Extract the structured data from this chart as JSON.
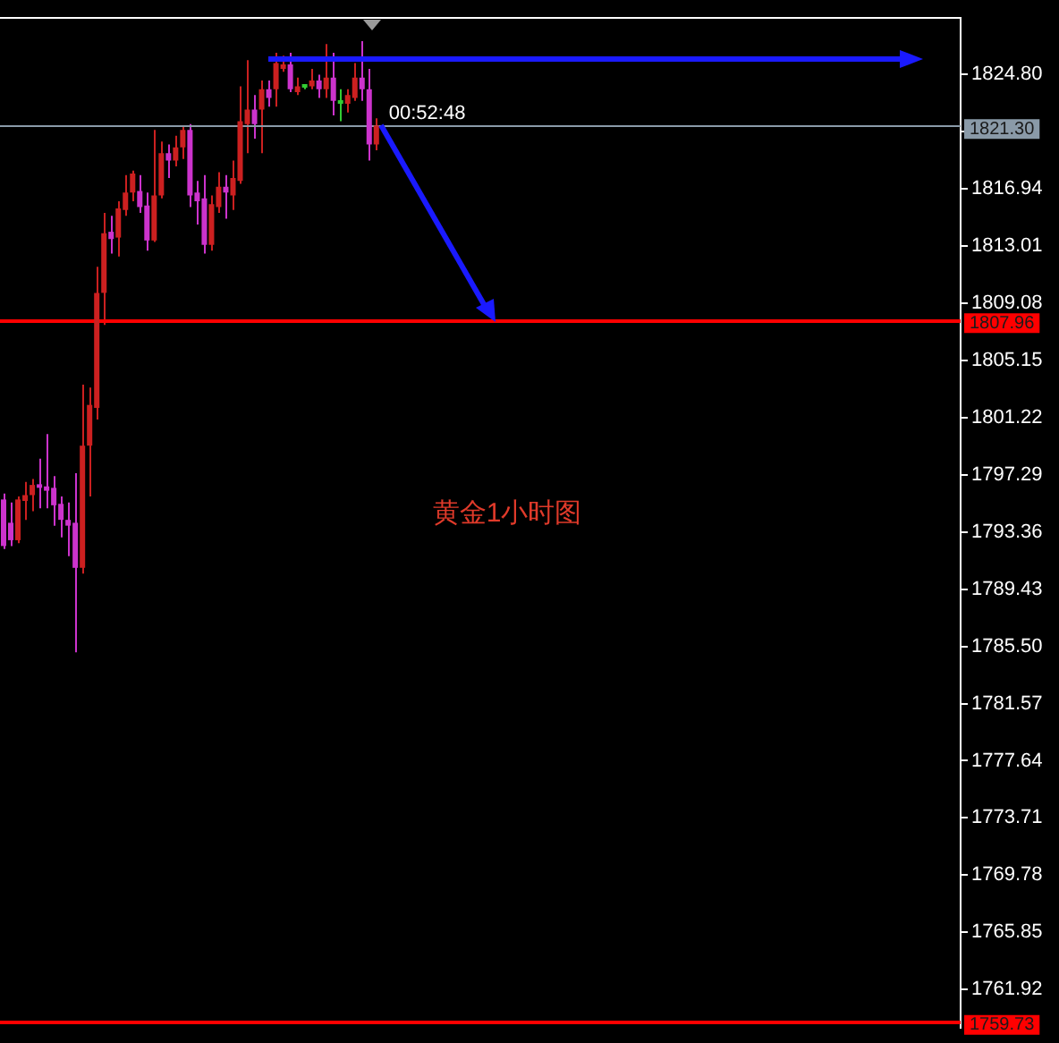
{
  "chart_data": {
    "type": "candlestick",
    "categories": [
      null,
      null,
      null,
      null,
      null,
      null,
      null,
      null,
      null,
      null,
      null,
      null,
      null,
      null,
      null,
      null,
      null,
      null,
      null,
      null,
      null,
      null,
      null,
      null,
      null,
      null,
      null,
      null,
      null,
      null,
      null,
      null,
      null,
      null,
      null,
      null,
      null,
      null,
      null,
      null,
      null,
      null,
      null,
      null,
      null,
      null,
      null,
      null,
      null,
      null,
      null,
      null,
      null,
      null,
      null,
      null,
      null,
      null,
      null,
      null,
      null,
      null,
      null,
      null,
      null,
      null,
      null,
      null,
      null,
      null,
      null,
      null,
      null,
      null,
      null,
      null,
      null,
      null,
      null,
      null,
      null,
      null,
      null,
      null,
      null,
      null,
      null,
      null,
      null,
      null,
      null,
      null,
      null,
      null,
      null,
      null,
      null,
      null,
      null,
      null,
      null,
      null,
      null,
      null,
      null,
      null,
      null,
      null,
      null,
      null,
      null,
      null,
      null,
      null,
      null,
      null,
      null,
      null,
      null,
      null,
      null,
      null,
      null,
      null,
      null,
      null,
      null,
      null,
      null,
      null,
      null,
      null,
      null,
      null
    ],
    "ohlc": [
      [
        1795.6,
        1796.0,
        1792.2,
        1792.4
      ],
      [
        1794.0,
        1795.4,
        1792.4,
        1792.8
      ],
      [
        1792.8,
        1795.8,
        1792.6,
        1795.6
      ],
      [
        1795.5,
        1796.8,
        1794.2,
        1795.9
      ],
      [
        1795.9,
        1797.0,
        1794.8,
        1796.6
      ],
      [
        1796.6,
        1798.4,
        1795.0,
        1796.4
      ],
      [
        1796.5,
        1800.1,
        1795.0,
        1796.2
      ],
      [
        1796.4,
        1797.2,
        1793.8,
        1795.2
      ],
      [
        1795.3,
        1795.8,
        1793.0,
        1794.2
      ],
      [
        1794.2,
        1795.4,
        1791.7,
        1793.8
      ],
      [
        1794.0,
        1797.4,
        1785.1,
        1790.9
      ],
      [
        1790.9,
        1803.5,
        1790.5,
        1799.3
      ],
      [
        1799.3,
        1803.3,
        1795.8,
        1802.1
      ],
      [
        1801.9,
        1811.6,
        1801.1,
        1809.8
      ],
      [
        1809.8,
        1815.3,
        1807.6,
        1813.9
      ],
      [
        1814.0,
        1815.1,
        1812.5,
        1813.5
      ],
      [
        1813.6,
        1816.1,
        1812.3,
        1815.6
      ],
      [
        1815.5,
        1817.9,
        1815.1,
        1816.7
      ],
      [
        1816.7,
        1818.2,
        1816.1,
        1818.0
      ],
      [
        1816.8,
        1817.9,
        1815.3,
        1815.7
      ],
      [
        1815.8,
        1816.7,
        1812.7,
        1813.4
      ],
      [
        1813.4,
        1821.0,
        1813.3,
        1816.5
      ],
      [
        1816.5,
        1820.2,
        1816.3,
        1819.4
      ],
      [
        1819.4,
        1820.0,
        1817.7,
        1818.9
      ],
      [
        1818.9,
        1820.6,
        1818.5,
        1819.8
      ],
      [
        1819.8,
        1821.2,
        1819.0,
        1821.0
      ],
      [
        1821.0,
        1821.4,
        1815.7,
        1816.5
      ],
      [
        1816.7,
        1817.5,
        1814.5,
        1816.1
      ],
      [
        1816.3,
        1817.9,
        1812.5,
        1813.1
      ],
      [
        1813.1,
        1816.5,
        1812.7,
        1815.9
      ],
      [
        1815.7,
        1818.1,
        1815.3,
        1817.1
      ],
      [
        1817.1,
        1817.9,
        1814.9,
        1816.7
      ],
      [
        1816.5,
        1818.9,
        1815.5,
        1817.7
      ],
      [
        1817.5,
        1824.0,
        1817.3,
        1821.6
      ],
      [
        1821.4,
        1825.8,
        1819.4,
        1822.4
      ],
      [
        1822.4,
        1823.4,
        1820.4,
        1821.4
      ],
      [
        1822.4,
        1824.4,
        1819.4,
        1823.8
      ],
      [
        1823.8,
        1824.4,
        1822.6,
        1823.2
      ],
      [
        1823.8,
        1826.3,
        1822.6,
        1825.6
      ],
      [
        1825.2,
        1826.1,
        1825.0,
        1825.5
      ],
      [
        1825.5,
        1826.3,
        1823.6,
        1823.8
      ],
      [
        1823.6,
        1824.6,
        1823.4,
        1824.0
      ],
      [
        1823.9,
        1824.0,
        1823.8,
        1823.9
      ],
      [
        1824.0,
        1825.2,
        1823.8,
        1824.4
      ],
      [
        1824.4,
        1824.8,
        1823.2,
        1823.8
      ],
      [
        1823.8,
        1826.9,
        1823.2,
        1824.6
      ],
      [
        1824.6,
        1826.3,
        1822.0,
        1823.0
      ],
      [
        1822.8,
        1823.8,
        1821.6,
        1822.8
      ],
      [
        1822.8,
        1823.8,
        1822.2,
        1823.4
      ],
      [
        1823.2,
        1825.6,
        1823.0,
        1824.6
      ],
      [
        1824.6,
        1827.1,
        1823.0,
        1823.8
      ],
      [
        1823.8,
        1825.2,
        1818.9,
        1820.0
      ],
      [
        1820.0,
        1821.8,
        1819.6,
        1821.3
      ],
      null,
      null,
      null,
      null,
      null,
      null,
      null,
      null,
      null,
      null,
      null,
      null,
      null,
      null,
      null,
      null,
      null,
      null,
      null,
      null,
      null,
      null,
      null,
      null,
      null,
      null,
      null,
      null,
      null,
      null,
      null,
      null,
      null,
      null,
      null,
      null,
      null,
      null,
      null,
      null,
      null,
      null,
      null,
      null,
      null,
      null,
      null,
      null,
      null,
      null,
      null,
      null,
      null,
      null,
      null,
      null,
      null,
      null,
      null,
      null,
      null,
      null,
      null,
      null,
      null,
      null,
      null,
      null,
      null,
      null,
      null,
      null,
      null,
      null,
      null,
      null,
      null,
      null,
      null,
      null,
      null
    ],
    "colors": [
      "#cc33cc",
      "#cc33cc",
      "#cc2020",
      "#cc2020",
      "#cc2020",
      "#cc33cc",
      "#cc33cc",
      "#cc33cc",
      "#cc33cc",
      "#cc33cc",
      "#cc33cc",
      "#cc2020",
      "#cc2020",
      "#cc2020",
      "#cc2020",
      "#cc33cc",
      "#cc2020",
      "#cc2020",
      "#cc2020",
      "#cc33cc",
      "#cc33cc",
      "#cc2020",
      "#cc2020",
      "#cc33cc",
      "#cc2020",
      "#cc2020",
      "#cc33cc",
      "#cc33cc",
      "#cc33cc",
      "#cc2020",
      "#cc2020",
      "#cc33cc",
      "#cc2020",
      "#cc2020",
      "#cc2020",
      "#cc33cc",
      "#cc2020",
      "#cc33cc",
      "#cc2020",
      "#cc2020",
      "#cc33cc",
      "#cc2020",
      "#33cc33",
      "#cc2020",
      "#cc33cc",
      "#cc2020",
      "#cc33cc",
      "#33cc33",
      "#cc2020",
      "#cc2020",
      "#cc33cc",
      "#cc33cc",
      "#cc2020",
      null,
      null,
      null,
      null,
      null,
      null,
      null,
      null,
      null,
      null,
      null,
      null,
      null,
      null,
      null,
      null,
      null,
      null,
      null,
      null,
      null,
      null,
      null,
      null,
      null,
      null,
      null,
      null,
      null,
      null,
      null,
      null,
      null,
      null,
      null,
      null,
      null,
      null,
      null,
      null,
      null,
      null,
      null,
      null,
      null,
      null,
      null,
      null,
      null,
      null,
      null,
      null,
      null,
      null,
      null,
      null,
      null,
      null,
      null,
      null,
      null,
      null,
      null,
      null,
      null,
      null,
      null,
      null,
      null,
      null,
      null,
      null,
      null,
      null,
      null,
      null,
      null,
      null,
      null,
      null,
      null
    ],
    "ylim": [
      1759.3,
      1828.7
    ],
    "yticks": [
      {
        "value": 1824.8,
        "label": "1824.80"
      },
      {
        "value": 1820.87,
        "label": null
      },
      {
        "value": 1816.94,
        "label": "1816.94"
      },
      {
        "value": 1813.01,
        "label": "1813.01"
      },
      {
        "value": 1809.08,
        "label": "1809.08"
      },
      {
        "value": 1805.15,
        "label": "1805.15"
      },
      {
        "value": 1801.22,
        "label": "1801.22"
      },
      {
        "value": 1797.29,
        "label": "1797.29"
      },
      {
        "value": 1793.36,
        "label": "1793.36"
      },
      {
        "value": 1789.43,
        "label": "1789.43"
      },
      {
        "value": 1785.5,
        "label": "1785.50"
      },
      {
        "value": 1781.57,
        "label": "1781.57"
      },
      {
        "value": 1777.64,
        "label": "1777.64"
      },
      {
        "value": 1773.71,
        "label": "1773.71"
      },
      {
        "value": 1769.78,
        "label": "1769.78"
      },
      {
        "value": 1765.85,
        "label": "1765.85"
      },
      {
        "value": 1761.92,
        "label": "1761.92"
      }
    ],
    "ref_lines": [
      {
        "axis": "y",
        "value": 1821.3,
        "label": "1821.30",
        "color": "#8a9aa8"
      },
      {
        "axis": "y",
        "value": 1807.96,
        "label": "1807.96",
        "color": "#ff0000"
      },
      {
        "axis": "y",
        "value": 1759.73,
        "label": "1759.73",
        "color": "#ff0000"
      }
    ],
    "annotations": [
      "00:52:48",
      "黄金1小时图"
    ],
    "tick_labels": "y",
    "grid": false,
    "legend": false
  }
}
